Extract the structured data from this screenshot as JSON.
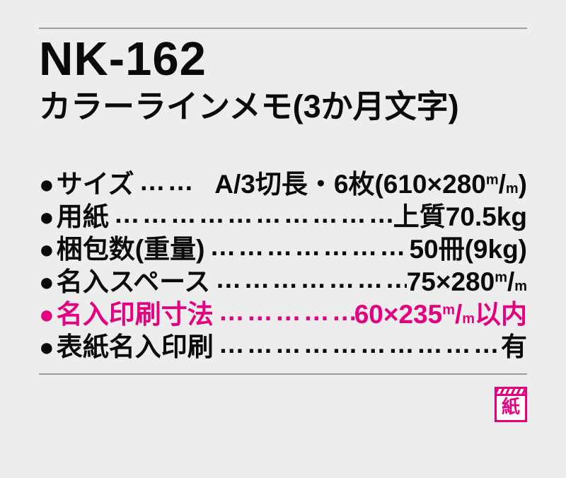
{
  "colors": {
    "accent": "#e4007f",
    "text": "#0a0a0a",
    "rule": "#9e9e9e",
    "background": "#ededed"
  },
  "header": {
    "code": "NK-162",
    "name": "カラーラインメモ(3か月文字)"
  },
  "specs": {
    "rows": [
      {
        "bullet": "●",
        "label": "サイズ",
        "leader": "……",
        "value_head": "A/3切長・6枚(610×280",
        "mm_sup": "m",
        "mm_slash": "/",
        "mm_sub": "m",
        "value_tail": ")"
      },
      {
        "bullet": "●",
        "label": "用紙",
        "leader": "……………………………",
        "value_head": "上質70.5kg"
      },
      {
        "bullet": "●",
        "label": "梱包数(重量)",
        "leader": "………………………",
        "value_head": "50冊(9kg)"
      },
      {
        "bullet": "●",
        "label": "名入スペース",
        "leader": "………………………",
        "value_head": "75×280",
        "mm_sup": "m",
        "mm_slash": "/",
        "mm_sub": "m"
      },
      {
        "bullet": "●",
        "label": "名入印刷寸法",
        "leader": "……………",
        "value_head": "60×235",
        "mm_sup": "m",
        "mm_slash": "/",
        "mm_sub": "m",
        "value_tail": "以内",
        "emphasis": true
      },
      {
        "bullet": "●",
        "label": "表紙名入印刷",
        "leader": "……………………………",
        "value_head": "有"
      }
    ]
  },
  "badge": {
    "label": "紙"
  }
}
